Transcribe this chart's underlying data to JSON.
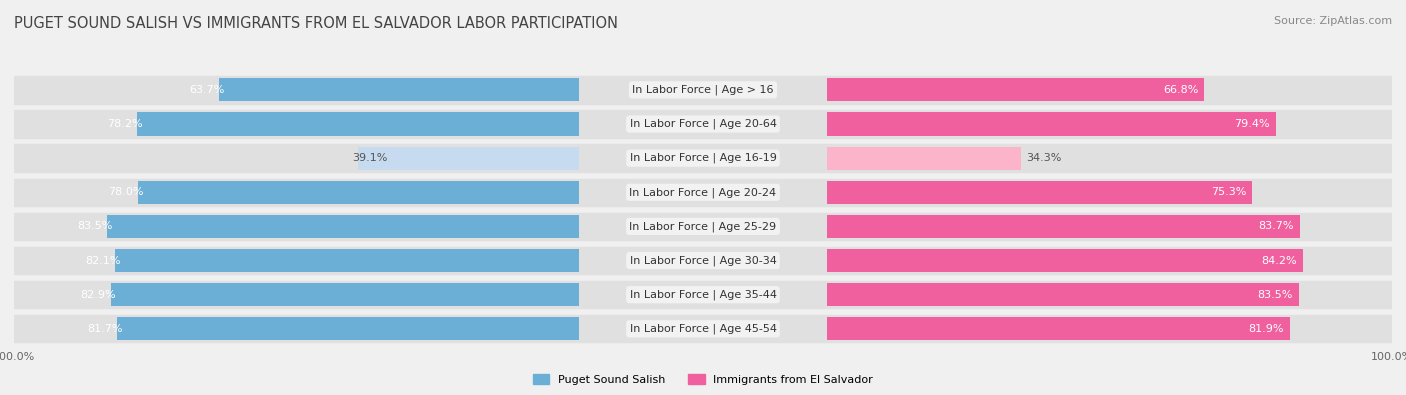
{
  "title": "PUGET SOUND SALISH VS IMMIGRANTS FROM EL SALVADOR LABOR PARTICIPATION",
  "source": "Source: ZipAtlas.com",
  "categories": [
    "In Labor Force | Age > 16",
    "In Labor Force | Age 20-64",
    "In Labor Force | Age 16-19",
    "In Labor Force | Age 20-24",
    "In Labor Force | Age 25-29",
    "In Labor Force | Age 30-34",
    "In Labor Force | Age 35-44",
    "In Labor Force | Age 45-54"
  ],
  "salish_values": [
    63.7,
    78.2,
    39.1,
    78.0,
    83.5,
    82.1,
    82.9,
    81.7
  ],
  "salvador_values": [
    66.8,
    79.4,
    34.3,
    75.3,
    83.7,
    84.2,
    83.5,
    81.9
  ],
  "salish_color_strong": "#6baed6",
  "salish_color_light": "#c6dbef",
  "salvador_color_strong": "#f0609e",
  "salvador_color_light": "#fbb4c9",
  "bar_height": 0.68,
  "legend_salish": "Puget Sound Salish",
  "legend_salvador": "Immigrants from El Salvador",
  "bg_color": "#f0f0f0",
  "row_bg_color": "#e0e0e0",
  "title_fontsize": 10.5,
  "source_fontsize": 8,
  "label_fontsize": 8,
  "value_fontsize": 8,
  "axis_tick_fontsize": 8,
  "center_label_bg": "#f5f5f5"
}
